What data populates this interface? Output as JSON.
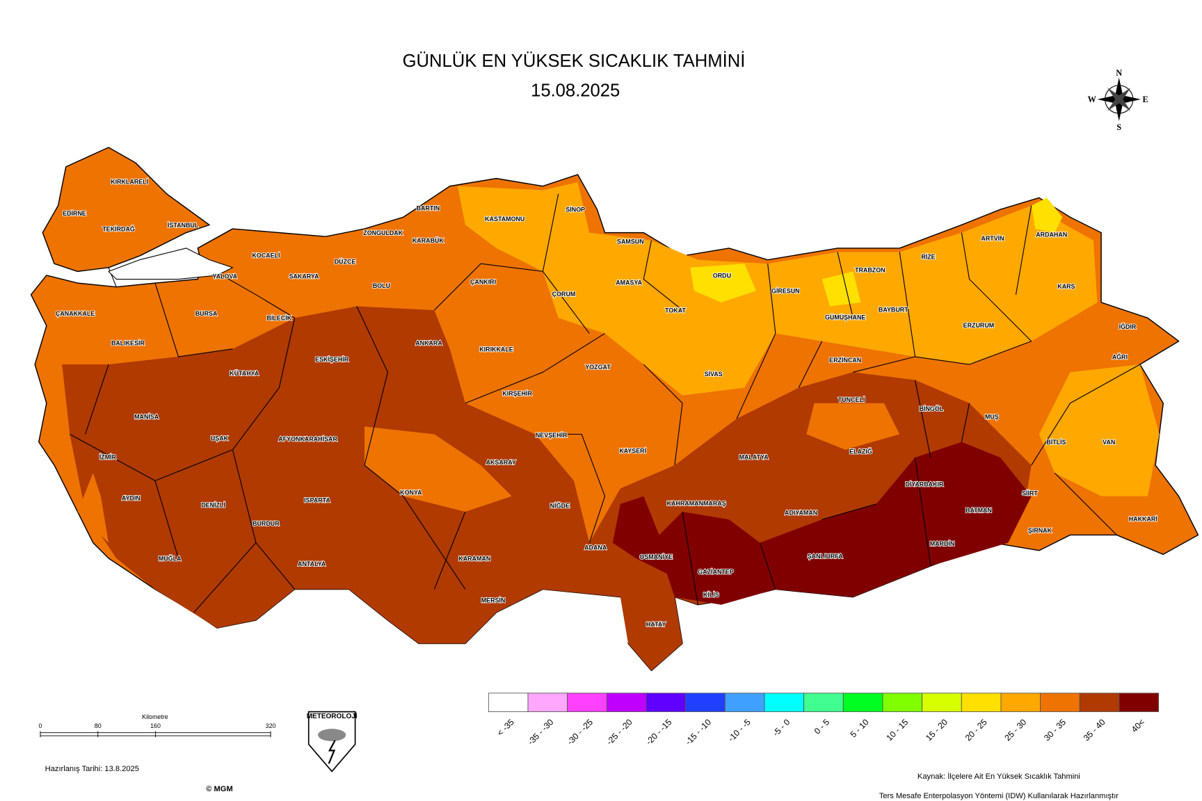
{
  "header": {
    "title": "GÜNLÜK EN YÜKSEK SICAKLIK TAHMİNİ",
    "date": "15.08.2025"
  },
  "compass": {
    "n": "N",
    "e": "E",
    "s": "S",
    "w": "W"
  },
  "provinces": [
    "KIRKLARELİ",
    "EDİRNE",
    "TEKİRDAĞ",
    "İSTANBUL",
    "KOCAELİ",
    "YALOVA",
    "SAKARYA",
    "DÜZCE",
    "ZONGULDAK",
    "BARTIN",
    "KARABÜK",
    "KASTAMONU",
    "SİNOP",
    "SAMSUN",
    "ÇANAKKALE",
    "BURSA",
    "BİLECİK",
    "BOLU",
    "ÇANKIRI",
    "ÇORUM",
    "AMASYA",
    "TOKAT",
    "ORDU",
    "GİRESUN",
    "TRABZON",
    "RİZE",
    "ARTVİN",
    "ARDAHAN",
    "KARS",
    "BALIKESİR",
    "ESKİŞEHİR",
    "ANKARA",
    "KIRIKKALE",
    "YOZGAT",
    "SİVAS",
    "GÜMÜŞHANE",
    "BAYBURT",
    "ERZURUM",
    "IĞDIR",
    "AĞRI",
    "ERZİNCAN",
    "KÜTAHYA",
    "KIRŞEHİR",
    "TUNCELİ",
    "BİNGÖL",
    "MUŞ",
    "BİTLİS",
    "VAN",
    "MANİSA",
    "UŞAK",
    "AFYONKARAHİSAR",
    "NEVŞEHİR",
    "KAYSERİ",
    "MALATYA",
    "ELAZIĞ",
    "İZMİR",
    "AKSARAY",
    "DİYARBAKIR",
    "SİİRT",
    "AYDIN",
    "DENİZLİ",
    "ISPARTA",
    "KONYA",
    "NİĞDE",
    "KAHRAMANMARAŞ",
    "ADIYAMAN",
    "BATMAN",
    "HAKKARİ",
    "BURDUR",
    "ŞIRNAK",
    "ADANA",
    "OSMANİYE",
    "ŞANLIURFA",
    "MARDİN",
    "MUĞLA",
    "ANTALYA",
    "KARAMAN",
    "GAZİANTEP",
    "KİLİS",
    "MERSİN",
    "HATAY"
  ],
  "legend": {
    "classes": [
      {
        "label": "< -35",
        "color": "#ffffff"
      },
      {
        "label": "-35 - -30",
        "color": "#ffa6ff"
      },
      {
        "label": "-30 - -25",
        "color": "#ff40ff"
      },
      {
        "label": "-25 - -20",
        "color": "#c000ff"
      },
      {
        "label": "-20 - -15",
        "color": "#6000ff"
      },
      {
        "label": "-15 - -10",
        "color": "#2040ff"
      },
      {
        "label": "-10 - -5",
        "color": "#40a0ff"
      },
      {
        "label": "-5 - 0",
        "color": "#00ffff"
      },
      {
        "label": "0 - 5",
        "color": "#40ff90"
      },
      {
        "label": "5 - 10",
        "color": "#00ff20"
      },
      {
        "label": "10 - 15",
        "color": "#80ff00"
      },
      {
        "label": "15 - 20",
        "color": "#d8ff00"
      },
      {
        "label": "20 - 25",
        "color": "#ffe000"
      },
      {
        "label": "25 - 30",
        "color": "#ffa800"
      },
      {
        "label": "30 - 35",
        "color": "#ee7300"
      },
      {
        "label": "35 - 40",
        "color": "#b03a00"
      },
      {
        "label": "40<",
        "color": "#800000"
      }
    ]
  },
  "scale": {
    "title": "Kilometre",
    "ticks": [
      0,
      80,
      160,
      320
    ]
  },
  "footer": {
    "prepared": "Hazırlanış Tarihi:  13.8.2025",
    "copyright": "© MGM",
    "logo": "METEOROLOJİ",
    "source": "Kaynak: İlçelere Ait En Yüksek Sıcaklık Tahmini",
    "method": "Ters Mesafe Enterpolasyon Yöntemi (IDW) Kullanılarak Hazırlanmıştır"
  }
}
